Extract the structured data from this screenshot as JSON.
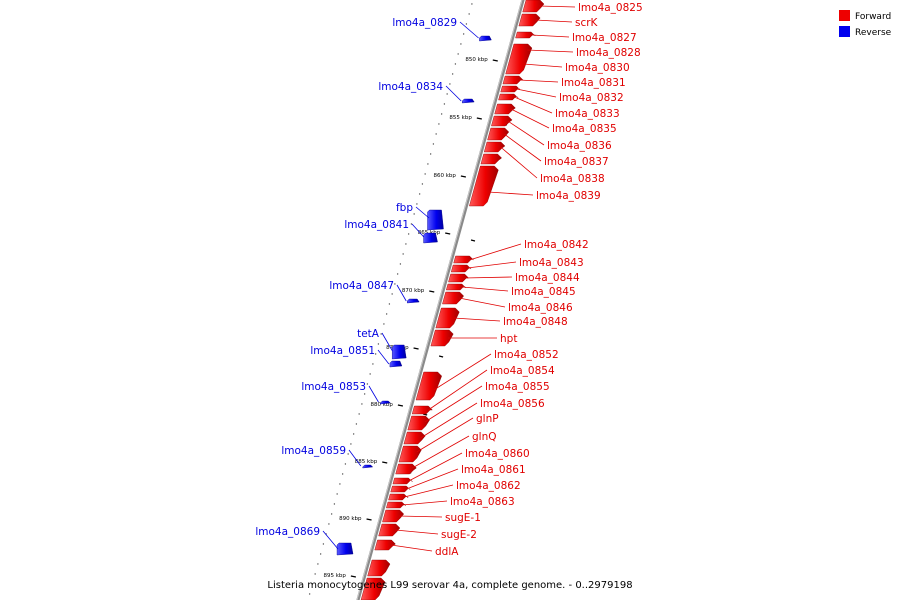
{
  "legend": {
    "forward": {
      "label": "Forward",
      "color": "#ee0000"
    },
    "reverse": {
      "label": "Reverse",
      "color": "#0000ee"
    }
  },
  "caption": "Listeria monocytogenes L99 serovar 4a, complete genome. - 0..2979198",
  "kbp_marks": [
    "850 kbp",
    "855 kbp",
    "860 kbp",
    "865 kbp",
    "870 kbp",
    "875 kbp",
    "880 kbp",
    "885 kbp",
    "890 kbp",
    "895 kbp"
  ],
  "forward_genes": [
    "lmo4a_0825",
    "scrK",
    "lmo4a_0827",
    "lmo4a_0828",
    "lmo4a_0830",
    "lmo4a_0831",
    "lmo4a_0832",
    "lmo4a_0833",
    "lmo4a_0835",
    "lmo4a_0836",
    "lmo4a_0837",
    "lmo4a_0838",
    "lmo4a_0839",
    "lmo4a_0842",
    "lmo4a_0843",
    "lmo4a_0844",
    "lmo4a_0845",
    "lmo4a_0846",
    "lmo4a_0848",
    "hpt",
    "lmo4a_0852",
    "lmo4a_0854",
    "lmo4a_0855",
    "lmo4a_0856",
    "glnP",
    "glnQ",
    "lmo4a_0860",
    "lmo4a_0861",
    "lmo4a_0862",
    "lmo4a_0863",
    "sugE-1",
    "sugE-2",
    "ddlA"
  ],
  "reverse_genes": [
    "lmo4a_0829",
    "lmo4a_0834",
    "fbp",
    "lmo4a_0841",
    "lmo4a_0847",
    "tetA",
    "lmo4a_0851",
    "lmo4a_0853",
    "lmo4a_0859",
    "lmo4a_0869"
  ]
}
